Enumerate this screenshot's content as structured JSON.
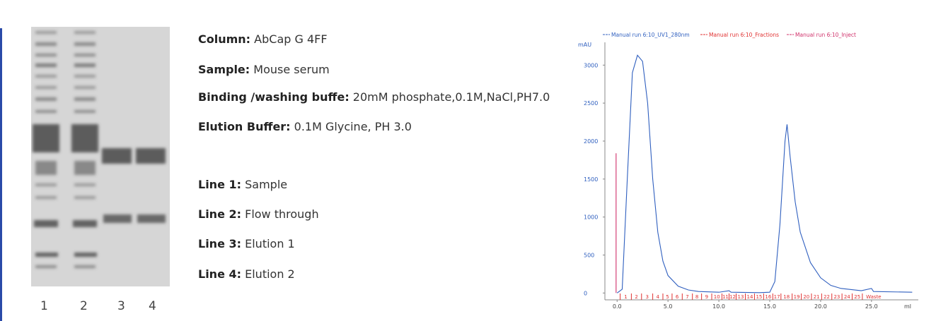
{
  "gel": {
    "lane_labels": [
      "1",
      "2",
      "3",
      "4"
    ]
  },
  "specs": [
    {
      "label": "Column:",
      "value": "AbCap G 4FF"
    },
    {
      "label": "Sample:",
      "value": "Mouse serum"
    },
    {
      "label": "Binding /washing buffe:",
      "value": "20mM phosphate,0.1M,NaCl,PH7.0"
    },
    {
      "label": "Elution Buffer:",
      "value": "0.1M Glycine, PH 3.0"
    }
  ],
  "lanes": [
    {
      "label": "Line 1:",
      "value": "Sample"
    },
    {
      "label": "Line 2:",
      "value": "Flow through"
    },
    {
      "label": "Line 3:",
      "value": "Elution 1"
    },
    {
      "label": "Line 4:",
      "value": "Elution 2"
    }
  ],
  "chart_data": {
    "type": "line",
    "ylabel": "mAU",
    "xlabel": "ml",
    "xlim": [
      -1.2,
      29.6
    ],
    "ylim": [
      -90,
      3300
    ],
    "xticks": [
      {
        "value": 0,
        "label": "0.0"
      },
      {
        "value": 5,
        "label": "5.0"
      },
      {
        "value": 10,
        "label": "10.0"
      },
      {
        "value": 15,
        "label": "15.0"
      },
      {
        "value": 20,
        "label": "20.0"
      },
      {
        "value": 25,
        "label": "25.0"
      }
    ],
    "yticks": [
      0,
      500,
      1000,
      1500,
      2000,
      2500,
      3000
    ],
    "series": [
      {
        "name": "Manual run 6:10_UV1_280nm",
        "color": "#2f5fbf",
        "x": [
          0,
          0.5,
          1.0,
          1.5,
          2.0,
          2.5,
          3.0,
          3.5,
          4.0,
          4.5,
          5.0,
          6.0,
          7.0,
          8.0,
          10.0,
          11.0,
          11.2,
          14.0,
          15.0,
          15.5,
          16.0,
          16.5,
          16.7,
          17.0,
          17.5,
          18.0,
          19.0,
          20.0,
          21.0,
          22.0,
          24.0,
          25.0,
          25.2,
          29.0
        ],
        "values": [
          0,
          50,
          1500,
          2900,
          3130,
          3050,
          2500,
          1500,
          800,
          420,
          230,
          90,
          40,
          20,
          10,
          30,
          10,
          5,
          10,
          150,
          900,
          2000,
          2220,
          1800,
          1200,
          800,
          400,
          200,
          100,
          60,
          30,
          60,
          20,
          10
        ]
      },
      {
        "name": "Manual run 6:10_Inject",
        "color": "#d0306a",
        "x": [
          -0.1,
          -0.1
        ],
        "values": [
          0,
          1840
        ]
      }
    ],
    "fractions": {
      "name": "Manual run 6:10_Fractions",
      "color": "#e03030",
      "labels": [
        "1",
        "2",
        "3",
        "4",
        "5",
        "6",
        "7",
        "8",
        "9",
        "10",
        "11",
        "12",
        "13",
        "14",
        "15",
        "16",
        "17",
        "18",
        "19",
        "20",
        "21",
        "22",
        "23",
        "24",
        "25",
        "Waste"
      ],
      "edges": [
        0.3,
        1.4,
        2.4,
        3.5,
        4.5,
        5.4,
        6.4,
        7.4,
        8.3,
        9.3,
        10.3,
        11.0,
        11.7,
        12.6,
        13.5,
        14.4,
        15.3,
        16.1,
        17.2,
        18.1,
        19.1,
        20.1,
        21.1,
        22.1,
        23.1,
        24.1
      ]
    }
  }
}
